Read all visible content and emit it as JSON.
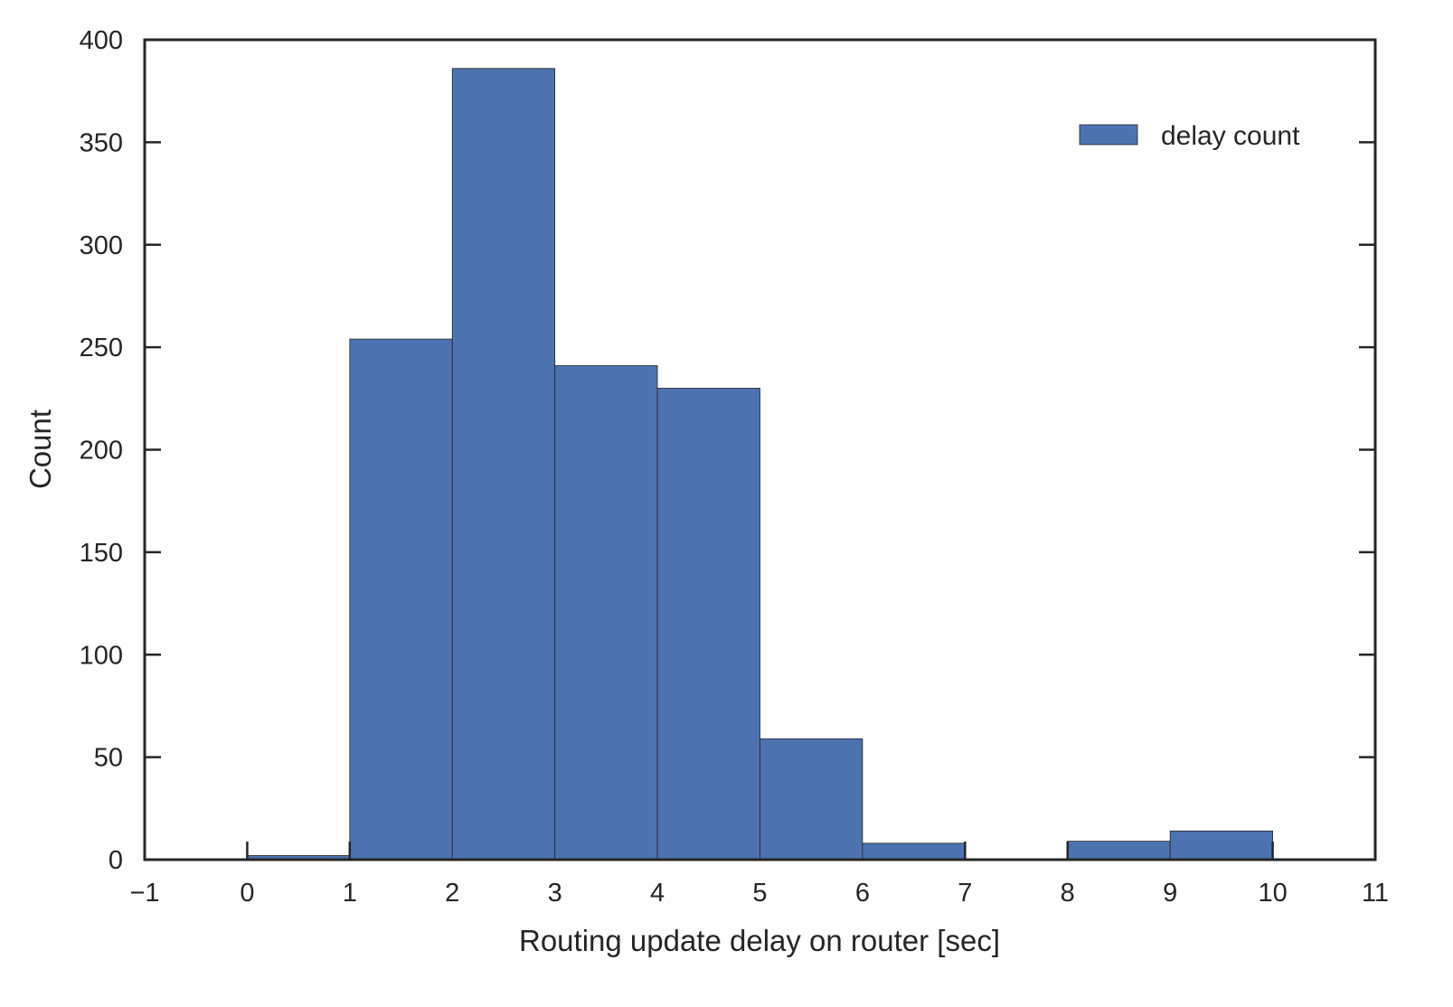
{
  "chart_data": {
    "type": "bar",
    "bins": [
      {
        "x0": 0,
        "x1": 1,
        "count": 2
      },
      {
        "x0": 1,
        "x1": 2,
        "count": 254
      },
      {
        "x0": 2,
        "x1": 3,
        "count": 386
      },
      {
        "x0": 3,
        "x1": 4,
        "count": 241
      },
      {
        "x0": 4,
        "x1": 5,
        "count": 230
      },
      {
        "x0": 5,
        "x1": 6,
        "count": 59
      },
      {
        "x0": 6,
        "x1": 7,
        "count": 8
      },
      {
        "x0": 7,
        "x1": 8,
        "count": 0
      },
      {
        "x0": 8,
        "x1": 9,
        "count": 9
      },
      {
        "x0": 9,
        "x1": 10,
        "count": 14
      }
    ],
    "title": "",
    "xlabel": "Routing update delay on router [sec]",
    "ylabel": "Count",
    "xlim": [
      -1,
      11
    ],
    "ylim": [
      0,
      400
    ],
    "xticks": [
      -1,
      0,
      1,
      2,
      3,
      4,
      5,
      6,
      7,
      8,
      9,
      10,
      11
    ],
    "xtick_labels": [
      "−1",
      "0",
      "1",
      "2",
      "3",
      "4",
      "5",
      "6",
      "7",
      "8",
      "9",
      "10",
      "11"
    ],
    "yticks": [
      0,
      50,
      100,
      150,
      200,
      250,
      300,
      350,
      400
    ],
    "ytick_labels": [
      "0",
      "50",
      "100",
      "150",
      "200",
      "250",
      "300",
      "350",
      "400"
    ],
    "series": [
      {
        "name": "delay count",
        "color": "#4c72b0"
      }
    ],
    "legend": {
      "position": "top-right"
    },
    "grid": false
  }
}
